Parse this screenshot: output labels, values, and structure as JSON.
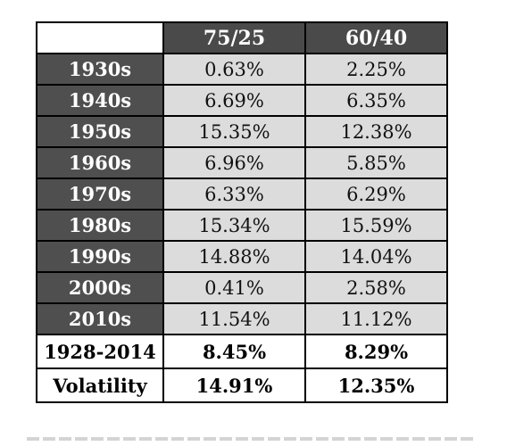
{
  "table": {
    "headers": [
      "75/25",
      "60/40"
    ],
    "rows": [
      {
        "label": "1930s",
        "v1": "0.63%",
        "v2": "2.25%"
      },
      {
        "label": "1940s",
        "v1": "6.69%",
        "v2": "6.35%"
      },
      {
        "label": "1950s",
        "v1": "15.35%",
        "v2": "12.38%"
      },
      {
        "label": "1960s",
        "v1": "6.96%",
        "v2": "5.85%"
      },
      {
        "label": "1970s",
        "v1": "6.33%",
        "v2": "6.29%"
      },
      {
        "label": "1980s",
        "v1": "15.34%",
        "v2": "15.59%"
      },
      {
        "label": "1990s",
        "v1": "14.88%",
        "v2": "14.04%"
      },
      {
        "label": "2000s",
        "v1": "0.41%",
        "v2": "2.58%"
      },
      {
        "label": "2010s",
        "v1": "11.54%",
        "v2": "11.12%"
      }
    ],
    "summary": [
      {
        "label": "1928-2014",
        "v1": "8.45%",
        "v2": "8.29%"
      },
      {
        "label": "Volatility",
        "v1": "14.91%",
        "v2": "12.35%"
      }
    ]
  },
  "colors": {
    "header_bg": "#4a4a4a",
    "row_label_bg": "#4f4f4f",
    "value_bg": "#dcdcdc",
    "summary_bg": "#ffffff"
  }
}
